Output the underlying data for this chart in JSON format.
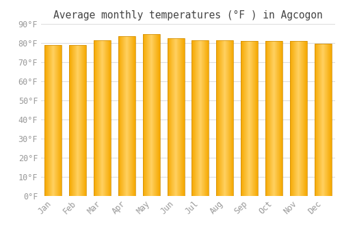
{
  "title": "Average monthly temperatures (°F ) in Agcogon",
  "months": [
    "Jan",
    "Feb",
    "Mar",
    "Apr",
    "May",
    "Jun",
    "Jul",
    "Aug",
    "Sep",
    "Oct",
    "Nov",
    "Dec"
  ],
  "values": [
    79,
    79,
    81.5,
    83.5,
    84.5,
    82.5,
    81.5,
    81.5,
    81,
    81,
    81,
    79.5
  ],
  "ylim": [
    0,
    90
  ],
  "yticks": [
    0,
    10,
    20,
    30,
    40,
    50,
    60,
    70,
    80,
    90
  ],
  "bar_color_center": "#FFD060",
  "bar_color_edge": "#F5A800",
  "bar_outline_color": "#CC8800",
  "background_color": "#FFFFFF",
  "plot_bg_color": "#FFFFFF",
  "grid_color": "#DDDDDD",
  "tick_label_color": "#999999",
  "title_color": "#444444",
  "title_fontsize": 10.5,
  "tick_fontsize": 8.5,
  "bar_width": 0.7
}
